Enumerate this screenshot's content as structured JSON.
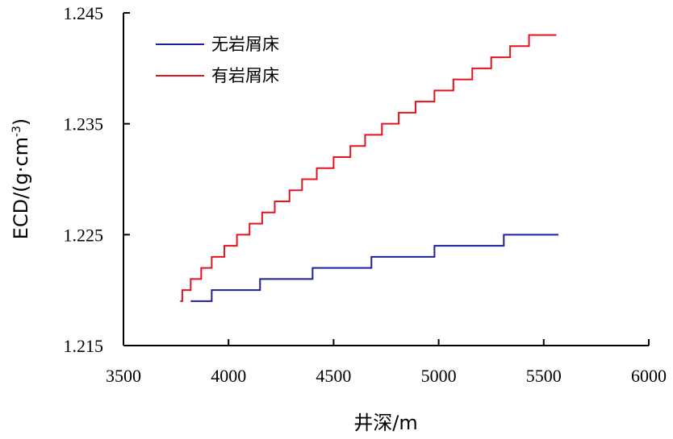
{
  "chart_data": {
    "type": "line",
    "title": "",
    "xlabel": "井深/m",
    "ylabel": "ECD/(g·cm",
    "ylabel_sup": "-3",
    "ylabel_close": ")",
    "xlim": [
      3500,
      6000
    ],
    "ylim": [
      1.215,
      1.245
    ],
    "x_ticks": [
      3500,
      4000,
      4500,
      5000,
      5500,
      6000
    ],
    "x_tick_labels": [
      "3500",
      "4000",
      "4500",
      "5000",
      "5500",
      "6000"
    ],
    "y_ticks": [
      1.215,
      1.225,
      1.235,
      1.245
    ],
    "y_tick_labels": [
      "1.215",
      "1.225",
      "1.235",
      "1.245"
    ],
    "grid": false,
    "legend_position": "top-left",
    "series": [
      {
        "name": "无岩屑床",
        "color": "#1f1f99",
        "step": true,
        "x": [
          3820,
          3920,
          4150,
          4400,
          4680,
          4980,
          5310,
          5570
        ],
        "y": [
          1.219,
          1.22,
          1.221,
          1.222,
          1.223,
          1.224,
          1.225,
          1.225
        ]
      },
      {
        "name": "有岩屑床",
        "color": "#e8101f",
        "step": true,
        "x": [
          3770,
          3780,
          3820,
          3870,
          3920,
          3980,
          4040,
          4100,
          4160,
          4220,
          4290,
          4350,
          4420,
          4500,
          4580,
          4650,
          4730,
          4810,
          4890,
          4980,
          5070,
          5160,
          5250,
          5340,
          5430,
          5520,
          5560
        ],
        "y": [
          1.219,
          1.22,
          1.221,
          1.222,
          1.223,
          1.224,
          1.225,
          1.226,
          1.227,
          1.228,
          1.229,
          1.23,
          1.231,
          1.232,
          1.233,
          1.234,
          1.235,
          1.236,
          1.237,
          1.238,
          1.239,
          1.24,
          1.241,
          1.242,
          1.243,
          1.243,
          1.243
        ]
      }
    ]
  }
}
